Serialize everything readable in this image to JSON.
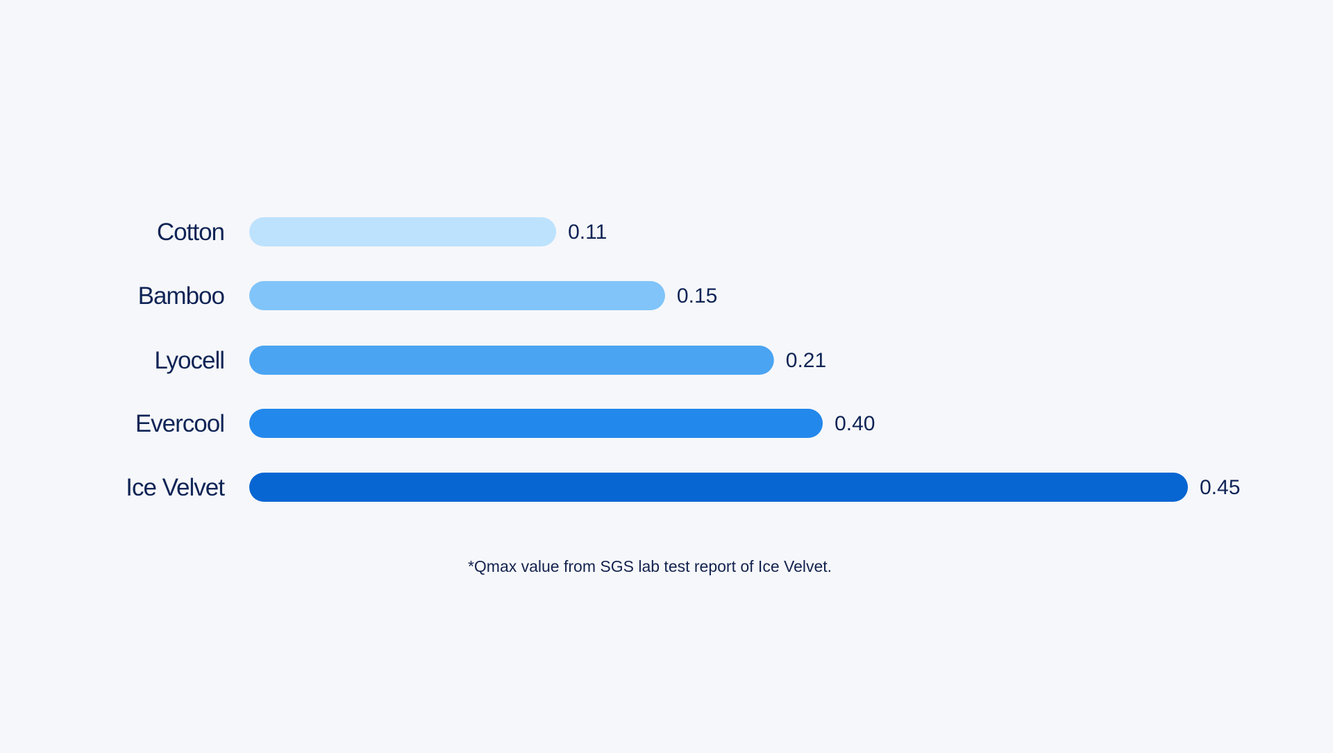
{
  "chart_data": {
    "type": "bar",
    "orientation": "horizontal",
    "categories": [
      "Cotton",
      "Bamboo",
      "Lyocell",
      "Evercool",
      "Ice Velvet"
    ],
    "values": [
      0.11,
      0.15,
      0.21,
      0.4,
      0.45
    ],
    "value_labels": [
      "0.11",
      "0.15",
      "0.21",
      "0.40",
      "0.45"
    ],
    "bar_colors": [
      "#bde2fd",
      "#80c4f9",
      "#4aa4f2",
      "#2388eb",
      "#0866d2"
    ],
    "title": "",
    "xlabel": "",
    "ylabel": "",
    "grid": false,
    "legend": "none"
  },
  "footnote": "*Qmax value from SGS lab test report of Ice Velvet.",
  "colors": {
    "background": "#f6f7fa",
    "text": "#0f2456"
  }
}
